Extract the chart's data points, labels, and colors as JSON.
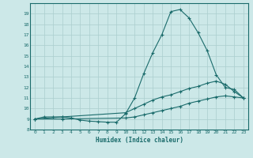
{
  "xlabel": "Humidex (Indice chaleur)",
  "ylabel": "",
  "background_color": "#cce8e8",
  "grid_color": "#aacece",
  "line_color": "#1a6b6b",
  "xlim": [
    -0.5,
    23.5
  ],
  "ylim": [
    8,
    20
  ],
  "xticks": [
    0,
    1,
    2,
    3,
    4,
    5,
    6,
    7,
    8,
    9,
    10,
    11,
    12,
    13,
    14,
    15,
    16,
    17,
    18,
    19,
    20,
    21,
    22,
    23
  ],
  "yticks": [
    8,
    9,
    10,
    11,
    12,
    13,
    14,
    15,
    16,
    17,
    18,
    19
  ],
  "curve1_x": [
    0,
    1,
    2,
    3,
    4,
    5,
    6,
    7,
    8,
    9,
    10,
    11,
    12,
    13,
    14,
    15,
    16,
    17,
    18,
    19,
    20,
    21,
    22,
    23
  ],
  "curve1_y": [
    9.0,
    9.2,
    9.2,
    9.2,
    9.1,
    8.9,
    8.8,
    8.75,
    8.7,
    8.7,
    9.5,
    11.0,
    13.3,
    15.3,
    17.0,
    19.2,
    19.4,
    18.6,
    17.2,
    15.5,
    13.2,
    12.0,
    11.8,
    11.0
  ],
  "curve2_x": [
    0,
    3,
    10,
    11,
    12,
    13,
    14,
    15,
    16,
    17,
    18,
    19,
    20,
    21,
    22,
    23
  ],
  "curve2_y": [
    9.0,
    9.2,
    9.6,
    10.0,
    10.4,
    10.8,
    11.1,
    11.3,
    11.6,
    11.9,
    12.1,
    12.4,
    12.6,
    12.3,
    11.6,
    11.0
  ],
  "curve3_x": [
    0,
    3,
    10,
    11,
    12,
    13,
    14,
    15,
    16,
    17,
    18,
    19,
    20,
    21,
    22,
    23
  ],
  "curve3_y": [
    9.0,
    9.0,
    9.1,
    9.2,
    9.4,
    9.6,
    9.8,
    10.0,
    10.2,
    10.5,
    10.7,
    10.9,
    11.1,
    11.2,
    11.1,
    11.0
  ]
}
